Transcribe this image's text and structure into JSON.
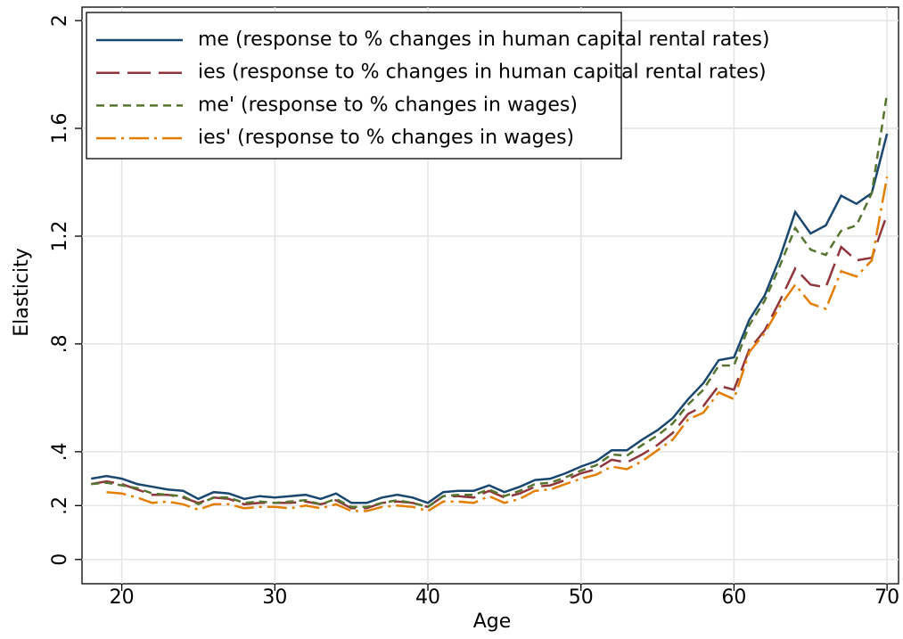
{
  "chart_data": {
    "type": "line",
    "x": [
      18,
      19,
      20,
      21,
      22,
      23,
      24,
      25,
      26,
      27,
      28,
      29,
      30,
      31,
      32,
      33,
      34,
      35,
      36,
      37,
      38,
      39,
      40,
      41,
      42,
      43,
      44,
      45,
      46,
      47,
      48,
      49,
      50,
      51,
      52,
      53,
      54,
      55,
      56,
      57,
      58,
      59,
      60,
      61,
      62,
      63,
      64,
      65,
      66,
      67,
      68,
      69,
      70
    ],
    "series": [
      {
        "name": "me (response to % changes in human capital rental rates)",
        "color": "#1a476f",
        "values": [
          0.3,
          0.31,
          0.3,
          0.28,
          0.27,
          0.26,
          0.255,
          0.225,
          0.25,
          0.245,
          0.225,
          0.235,
          0.23,
          0.235,
          0.24,
          0.225,
          0.245,
          0.21,
          0.21,
          0.23,
          0.24,
          0.23,
          0.21,
          0.25,
          0.255,
          0.255,
          0.275,
          0.25,
          0.27,
          0.295,
          0.3,
          0.32,
          0.345,
          0.365,
          0.405,
          0.405,
          0.445,
          0.48,
          0.525,
          0.595,
          0.655,
          0.74,
          0.75,
          0.89,
          0.98,
          1.12,
          1.29,
          1.21,
          1.24,
          1.35,
          1.32,
          1.36,
          1.58
        ]
      },
      {
        "name": "ies (response to % changes in human capital rental rates)",
        "color": "#90353b",
        "values": [
          0.28,
          0.29,
          0.28,
          0.26,
          0.24,
          0.24,
          0.23,
          0.21,
          0.23,
          0.225,
          0.205,
          0.21,
          0.21,
          0.21,
          0.215,
          0.205,
          0.22,
          0.19,
          0.19,
          0.21,
          0.215,
          0.21,
          0.195,
          0.235,
          0.235,
          0.23,
          0.255,
          0.23,
          0.245,
          0.27,
          0.275,
          0.295,
          0.32,
          0.335,
          0.37,
          0.36,
          0.39,
          0.425,
          0.47,
          0.54,
          0.57,
          0.645,
          0.63,
          0.78,
          0.85,
          0.96,
          1.08,
          1.02,
          1.01,
          1.16,
          1.11,
          1.12,
          1.28
        ]
      },
      {
        "name": "me' (response to % changes in wages)",
        "color": "#55752f",
        "values": [
          0.28,
          0.285,
          0.275,
          0.265,
          0.245,
          0.24,
          0.235,
          0.205,
          0.23,
          0.23,
          0.21,
          0.215,
          0.21,
          0.215,
          0.22,
          0.205,
          0.225,
          0.195,
          0.195,
          0.21,
          0.22,
          0.21,
          0.195,
          0.235,
          0.24,
          0.24,
          0.26,
          0.235,
          0.255,
          0.28,
          0.285,
          0.305,
          0.33,
          0.35,
          0.39,
          0.385,
          0.425,
          0.46,
          0.505,
          0.575,
          0.63,
          0.72,
          0.72,
          0.87,
          0.96,
          1.09,
          1.23,
          1.15,
          1.13,
          1.22,
          1.24,
          1.36,
          1.73
        ]
      },
      {
        "name": "ies' (response to % changes in wages)",
        "color": "#e37e00",
        "values": [
          null,
          0.25,
          0.245,
          0.23,
          0.21,
          0.215,
          0.205,
          0.185,
          0.205,
          0.205,
          0.19,
          0.195,
          0.195,
          0.19,
          0.2,
          0.19,
          0.205,
          0.18,
          0.18,
          0.195,
          0.2,
          0.195,
          0.18,
          0.215,
          0.215,
          0.21,
          0.235,
          0.21,
          0.225,
          0.255,
          0.26,
          0.28,
          0.3,
          0.315,
          0.345,
          0.335,
          0.365,
          0.405,
          0.445,
          0.52,
          0.545,
          0.62,
          0.595,
          0.77,
          0.84,
          0.94,
          1.02,
          0.95,
          0.93,
          1.07,
          1.05,
          1.11,
          1.42
        ]
      }
    ],
    "xlabel": "Age",
    "ylabel": "Elasticity",
    "xlim": [
      17.4,
      70.75
    ],
    "ylim": [
      -0.09,
      2.05
    ],
    "xticks": [
      20,
      30,
      40,
      50,
      60,
      70
    ],
    "yticks": [
      0,
      {
        "value": 0.2,
        "label": ".2"
      },
      {
        "value": 0.4,
        "label": ".4"
      },
      {
        "value": 0.8,
        "label": ".8"
      },
      1.2,
      1.6,
      2
    ],
    "grid": true,
    "legend": "top-left"
  }
}
